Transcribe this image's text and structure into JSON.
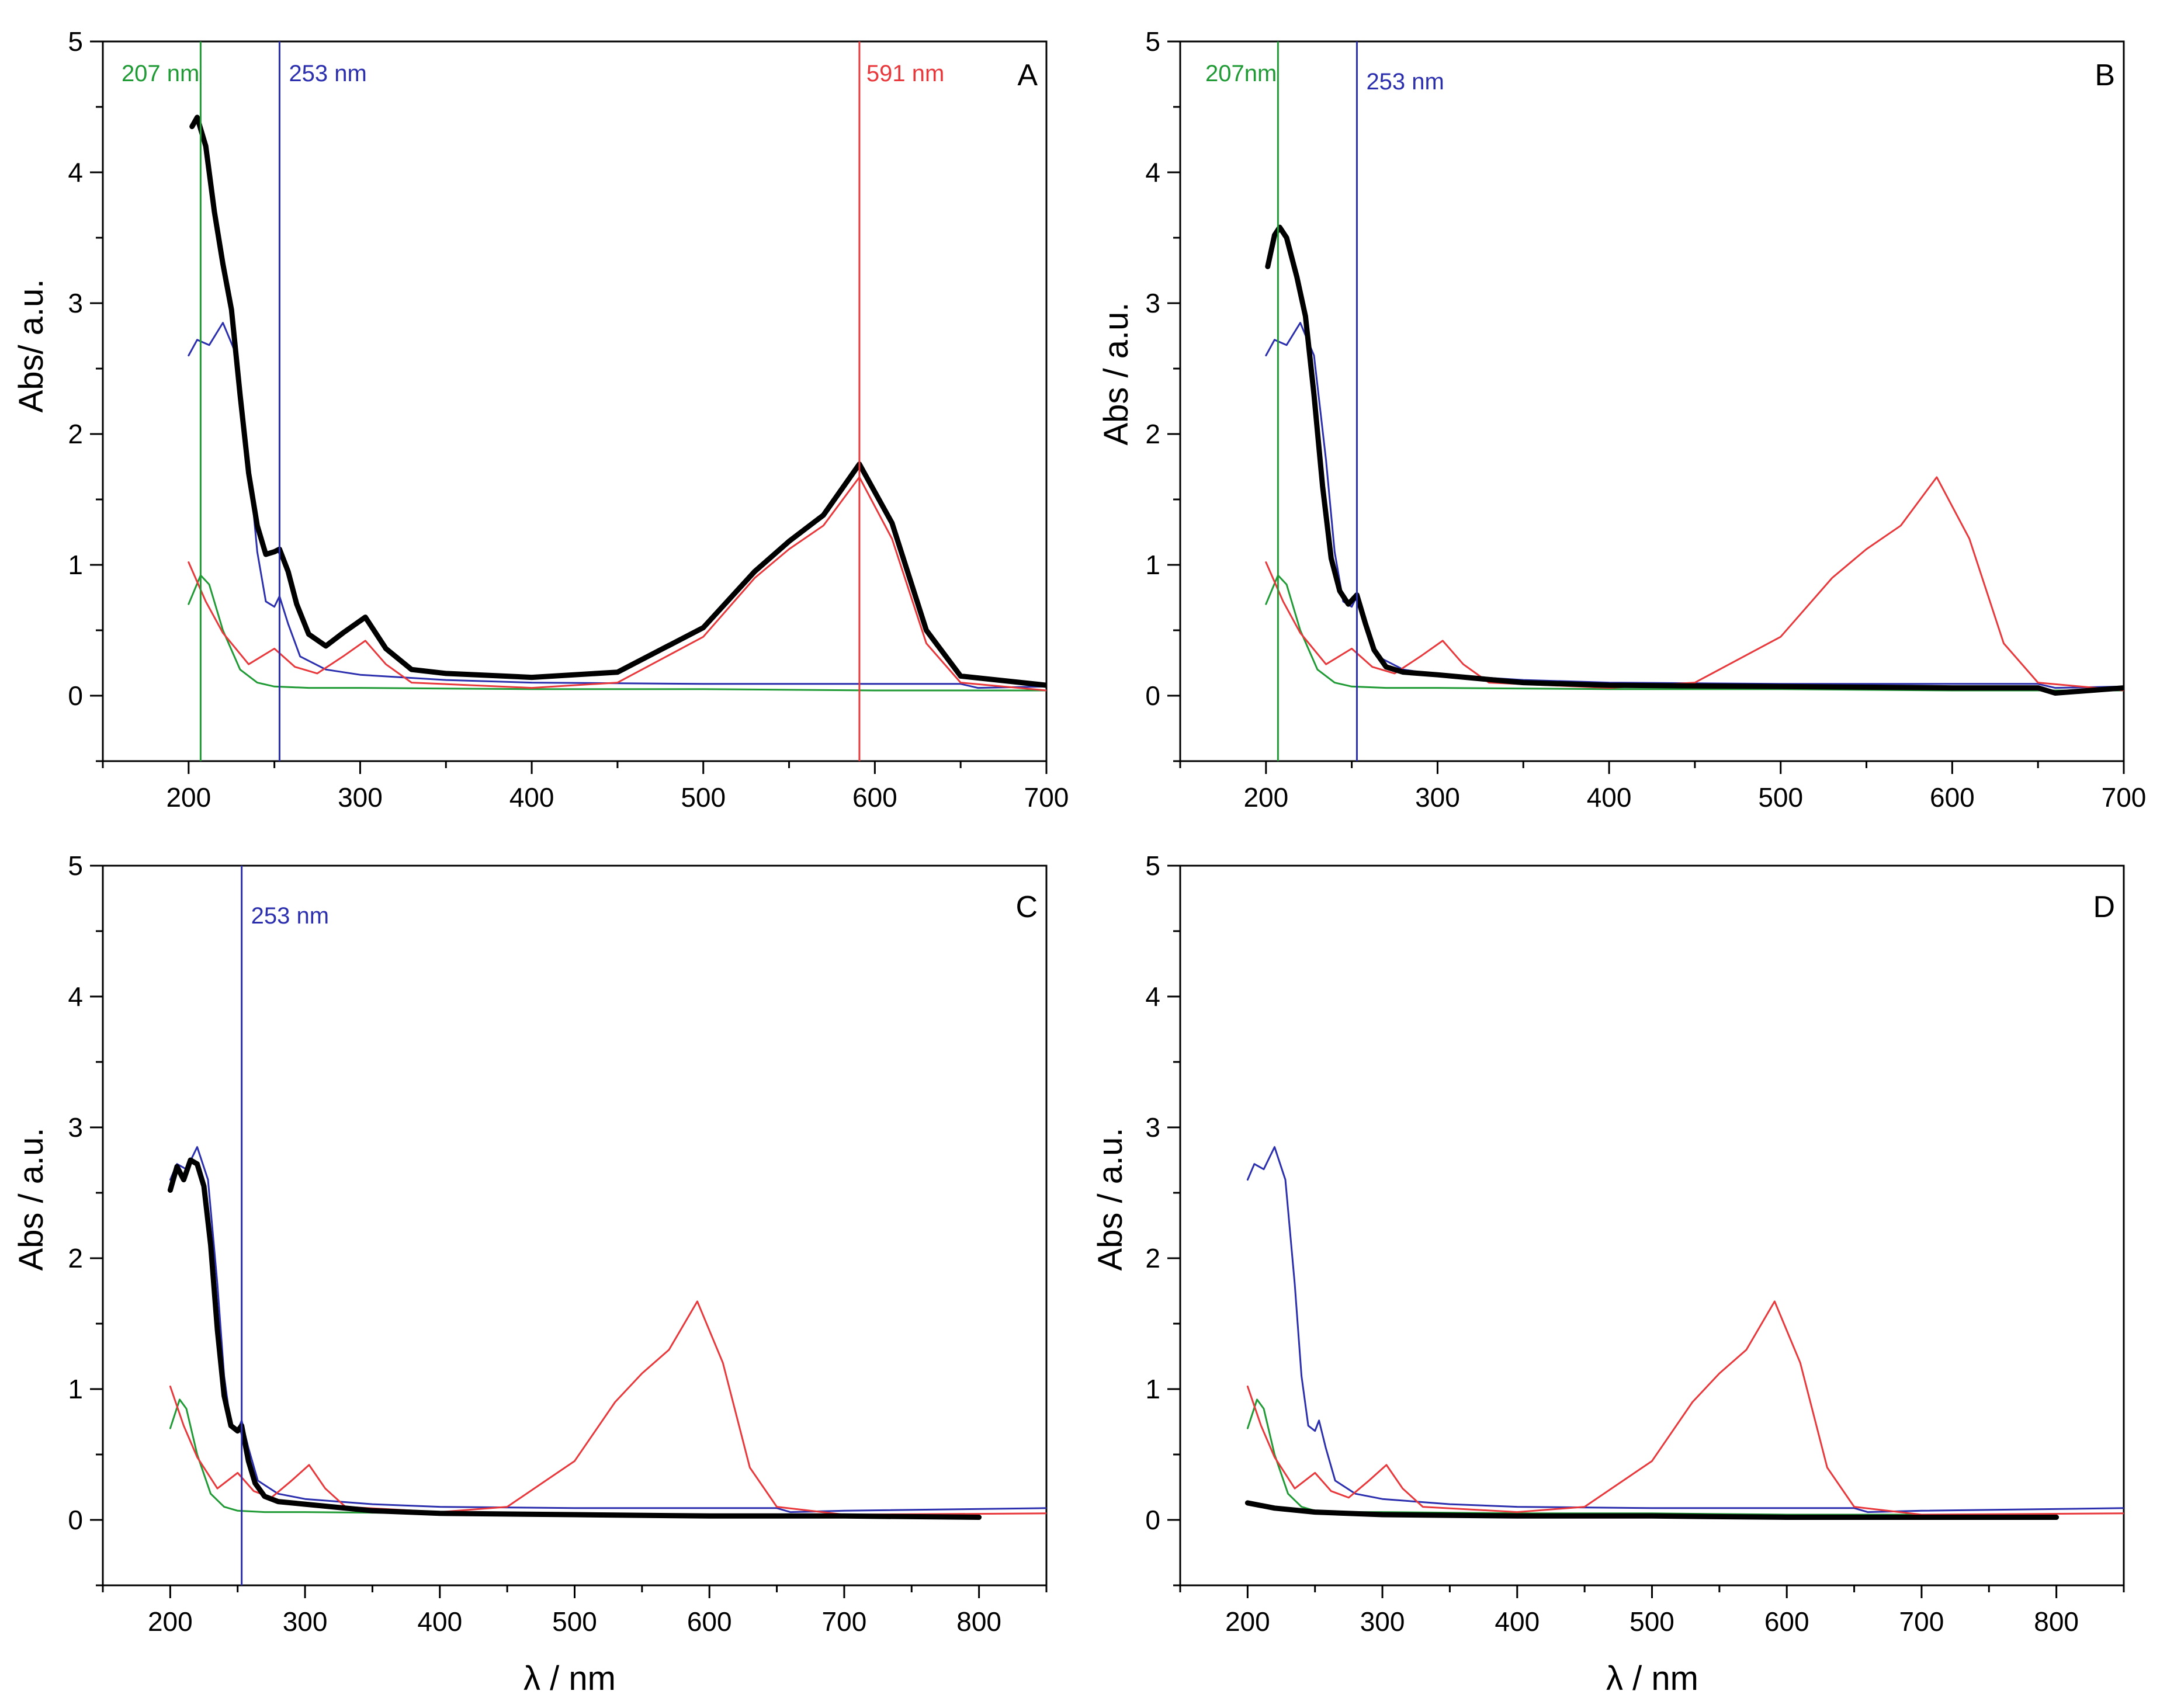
{
  "figure": {
    "x_label": "λ / nm"
  },
  "chart_data": [
    {
      "panel": "A",
      "type": "line",
      "ylabel": "Abs/ a.u.",
      "xlabel": "",
      "xlim": [
        150,
        700
      ],
      "ylim": [
        -0.5,
        5
      ],
      "xticks": [
        200,
        300,
        400,
        500,
        600,
        700
      ],
      "yticks": [
        0,
        1,
        2,
        3,
        4,
        5
      ],
      "markers": [
        {
          "x": 207,
          "label": "207 nm",
          "color": "#1f9a35"
        },
        {
          "x": 253,
          "label": "253 nm",
          "color": "#2b2fae"
        },
        {
          "x": 591,
          "label": "591 nm",
          "color": "#e8383b"
        }
      ],
      "series": [
        {
          "name": "green",
          "color": "#1f9a35",
          "width": 3,
          "x": [
            200,
            207,
            212,
            220,
            230,
            240,
            250,
            270,
            300,
            400,
            500,
            600,
            700
          ],
          "y": [
            0.7,
            0.92,
            0.85,
            0.5,
            0.2,
            0.1,
            0.07,
            0.06,
            0.06,
            0.05,
            0.05,
            0.04,
            0.04
          ]
        },
        {
          "name": "blue",
          "color": "#2b2fae",
          "width": 3,
          "x": [
            200,
            205,
            212,
            220,
            228,
            235,
            240,
            245,
            250,
            253,
            258,
            265,
            280,
            300,
            350,
            400,
            500,
            600,
            650,
            660,
            700
          ],
          "y": [
            2.6,
            2.72,
            2.68,
            2.85,
            2.6,
            1.8,
            1.1,
            0.72,
            0.68,
            0.76,
            0.55,
            0.3,
            0.2,
            0.16,
            0.12,
            0.1,
            0.09,
            0.09,
            0.09,
            0.06,
            0.07
          ]
        },
        {
          "name": "red",
          "color": "#e8383b",
          "width": 3,
          "x": [
            200,
            210,
            220,
            235,
            250,
            262,
            275,
            290,
            303,
            315,
            330,
            400,
            450,
            500,
            530,
            550,
            570,
            591,
            610,
            630,
            650,
            700
          ],
          "y": [
            1.02,
            0.72,
            0.48,
            0.24,
            0.36,
            0.22,
            0.17,
            0.3,
            0.42,
            0.24,
            0.1,
            0.06,
            0.1,
            0.45,
            0.9,
            1.12,
            1.3,
            1.67,
            1.2,
            0.4,
            0.1,
            0.04
          ]
        },
        {
          "name": "black",
          "color": "#000000",
          "width": 9,
          "x": [
            202,
            205,
            210,
            215,
            220,
            225,
            230,
            235,
            240,
            245,
            250,
            253,
            258,
            263,
            270,
            280,
            290,
            303,
            315,
            330,
            350,
            400,
            450,
            500,
            530,
            550,
            570,
            591,
            610,
            630,
            650,
            700
          ],
          "y": [
            4.35,
            4.42,
            4.2,
            3.7,
            3.3,
            2.95,
            2.3,
            1.7,
            1.3,
            1.08,
            1.1,
            1.12,
            0.95,
            0.7,
            0.47,
            0.38,
            0.48,
            0.6,
            0.36,
            0.2,
            0.17,
            0.14,
            0.18,
            0.52,
            0.95,
            1.18,
            1.38,
            1.77,
            1.32,
            0.5,
            0.15,
            0.08
          ]
        }
      ]
    },
    {
      "panel": "B",
      "type": "line",
      "ylabel": "Abs / a.u.",
      "xlabel": "",
      "xlim": [
        150,
        700
      ],
      "ylim": [
        -0.5,
        5
      ],
      "xticks": [
        200,
        300,
        400,
        500,
        600,
        700
      ],
      "yticks": [
        0,
        1,
        2,
        3,
        4,
        5
      ],
      "markers": [
        {
          "x": 207,
          "label": "207nm",
          "color": "#1f9a35"
        },
        {
          "x": 253,
          "label": "253 nm",
          "color": "#2b2fae"
        }
      ],
      "series": [
        {
          "name": "green",
          "color": "#1f9a35",
          "width": 3,
          "x": [
            200,
            207,
            212,
            220,
            230,
            240,
            250,
            270,
            300,
            400,
            500,
            600,
            700
          ],
          "y": [
            0.7,
            0.92,
            0.85,
            0.5,
            0.2,
            0.1,
            0.07,
            0.06,
            0.06,
            0.05,
            0.05,
            0.04,
            0.04
          ]
        },
        {
          "name": "blue",
          "color": "#2b2fae",
          "width": 3,
          "x": [
            200,
            205,
            212,
            220,
            228,
            235,
            240,
            245,
            250,
            253,
            258,
            265,
            280,
            300,
            350,
            400,
            500,
            600,
            650,
            660,
            700
          ],
          "y": [
            2.6,
            2.72,
            2.68,
            2.85,
            2.6,
            1.8,
            1.1,
            0.72,
            0.68,
            0.76,
            0.55,
            0.3,
            0.2,
            0.16,
            0.12,
            0.1,
            0.09,
            0.09,
            0.09,
            0.06,
            0.07
          ]
        },
        {
          "name": "red",
          "color": "#e8383b",
          "width": 3,
          "x": [
            200,
            210,
            220,
            235,
            250,
            262,
            275,
            290,
            303,
            315,
            330,
            400,
            450,
            500,
            530,
            550,
            570,
            591,
            610,
            630,
            650,
            700
          ],
          "y": [
            1.02,
            0.72,
            0.48,
            0.24,
            0.36,
            0.22,
            0.17,
            0.3,
            0.42,
            0.24,
            0.1,
            0.06,
            0.1,
            0.45,
            0.9,
            1.12,
            1.3,
            1.67,
            1.2,
            0.4,
            0.1,
            0.04
          ]
        },
        {
          "name": "black",
          "color": "#000000",
          "width": 9,
          "x": [
            201,
            205,
            208,
            212,
            218,
            223,
            228,
            233,
            238,
            243,
            248,
            253,
            258,
            263,
            270,
            280,
            300,
            350,
            400,
            500,
            600,
            650,
            660,
            700
          ],
          "y": [
            3.28,
            3.52,
            3.58,
            3.5,
            3.2,
            2.9,
            2.3,
            1.6,
            1.05,
            0.8,
            0.7,
            0.77,
            0.55,
            0.35,
            0.22,
            0.18,
            0.16,
            0.1,
            0.08,
            0.07,
            0.06,
            0.06,
            0.02,
            0.06
          ]
        }
      ]
    },
    {
      "panel": "C",
      "type": "line",
      "ylabel": "Abs / a.u.",
      "xlabel": "λ / nm",
      "xlim": [
        150,
        850
      ],
      "ylim": [
        -0.5,
        5
      ],
      "xticks": [
        200,
        300,
        400,
        500,
        600,
        700,
        800
      ],
      "yticks": [
        0,
        1,
        2,
        3,
        4,
        5
      ],
      "markers": [
        {
          "x": 253,
          "label": "253 nm",
          "color": "#2b2fae"
        }
      ],
      "series": [
        {
          "name": "green",
          "color": "#1f9a35",
          "width": 3,
          "x": [
            200,
            207,
            212,
            220,
            230,
            240,
            250,
            270,
            300,
            400,
            500,
            600,
            700,
            800
          ],
          "y": [
            0.7,
            0.92,
            0.85,
            0.5,
            0.2,
            0.1,
            0.07,
            0.06,
            0.06,
            0.05,
            0.05,
            0.04,
            0.04,
            0.04
          ]
        },
        {
          "name": "blue",
          "color": "#2b2fae",
          "width": 3,
          "x": [
            200,
            205,
            212,
            220,
            228,
            235,
            240,
            245,
            250,
            253,
            258,
            265,
            280,
            300,
            350,
            400,
            500,
            600,
            650,
            660,
            700,
            850
          ],
          "y": [
            2.6,
            2.72,
            2.68,
            2.85,
            2.6,
            1.8,
            1.1,
            0.72,
            0.68,
            0.76,
            0.55,
            0.3,
            0.2,
            0.16,
            0.12,
            0.1,
            0.09,
            0.09,
            0.09,
            0.06,
            0.07,
            0.09
          ]
        },
        {
          "name": "red",
          "color": "#e8383b",
          "width": 3,
          "x": [
            200,
            210,
            220,
            235,
            250,
            262,
            275,
            290,
            303,
            315,
            330,
            400,
            450,
            500,
            530,
            550,
            570,
            591,
            610,
            630,
            650,
            700,
            850
          ],
          "y": [
            1.02,
            0.72,
            0.48,
            0.24,
            0.36,
            0.22,
            0.17,
            0.3,
            0.42,
            0.24,
            0.1,
            0.06,
            0.1,
            0.45,
            0.9,
            1.12,
            1.3,
            1.67,
            1.2,
            0.4,
            0.1,
            0.04,
            0.05
          ]
        },
        {
          "name": "black",
          "color": "#000000",
          "width": 9,
          "x": [
            200,
            205,
            210,
            215,
            220,
            225,
            230,
            235,
            240,
            245,
            250,
            253,
            258,
            263,
            270,
            280,
            300,
            350,
            400,
            500,
            600,
            700,
            800
          ],
          "y": [
            2.52,
            2.7,
            2.6,
            2.75,
            2.72,
            2.55,
            2.1,
            1.45,
            0.95,
            0.72,
            0.68,
            0.72,
            0.45,
            0.28,
            0.18,
            0.14,
            0.12,
            0.07,
            0.05,
            0.04,
            0.03,
            0.03,
            0.02
          ]
        }
      ]
    },
    {
      "panel": "D",
      "type": "line",
      "ylabel": "Abs / a.u.",
      "xlabel": "λ / nm",
      "xlim": [
        150,
        850
      ],
      "ylim": [
        -0.5,
        5
      ],
      "xticks": [
        200,
        300,
        400,
        500,
        600,
        700,
        800
      ],
      "yticks": [
        0,
        1,
        2,
        3,
        4,
        5
      ],
      "markers": [],
      "series": [
        {
          "name": "green",
          "color": "#1f9a35",
          "width": 3,
          "x": [
            200,
            207,
            212,
            220,
            230,
            240,
            250,
            270,
            300,
            400,
            500,
            600,
            700,
            800
          ],
          "y": [
            0.7,
            0.92,
            0.85,
            0.5,
            0.2,
            0.1,
            0.07,
            0.06,
            0.06,
            0.05,
            0.05,
            0.04,
            0.04,
            0.04
          ]
        },
        {
          "name": "blue",
          "color": "#2b2fae",
          "width": 3,
          "x": [
            200,
            205,
            212,
            220,
            228,
            235,
            240,
            245,
            250,
            253,
            258,
            265,
            280,
            300,
            350,
            400,
            500,
            600,
            650,
            660,
            700,
            850
          ],
          "y": [
            2.6,
            2.72,
            2.68,
            2.85,
            2.6,
            1.8,
            1.1,
            0.72,
            0.68,
            0.76,
            0.55,
            0.3,
            0.2,
            0.16,
            0.12,
            0.1,
            0.09,
            0.09,
            0.09,
            0.06,
            0.07,
            0.09
          ]
        },
        {
          "name": "red",
          "color": "#e8383b",
          "width": 3,
          "x": [
            200,
            210,
            220,
            235,
            250,
            262,
            275,
            290,
            303,
            315,
            330,
            400,
            450,
            500,
            530,
            550,
            570,
            591,
            610,
            630,
            650,
            700,
            850
          ],
          "y": [
            1.02,
            0.72,
            0.48,
            0.24,
            0.36,
            0.22,
            0.17,
            0.3,
            0.42,
            0.24,
            0.1,
            0.06,
            0.1,
            0.45,
            0.9,
            1.12,
            1.3,
            1.67,
            1.2,
            0.4,
            0.1,
            0.04,
            0.05
          ]
        },
        {
          "name": "black",
          "color": "#000000",
          "width": 9,
          "x": [
            200,
            220,
            250,
            300,
            400,
            500,
            600,
            700,
            800
          ],
          "y": [
            0.13,
            0.09,
            0.06,
            0.04,
            0.03,
            0.03,
            0.02,
            0.02,
            0.02
          ]
        }
      ]
    }
  ]
}
